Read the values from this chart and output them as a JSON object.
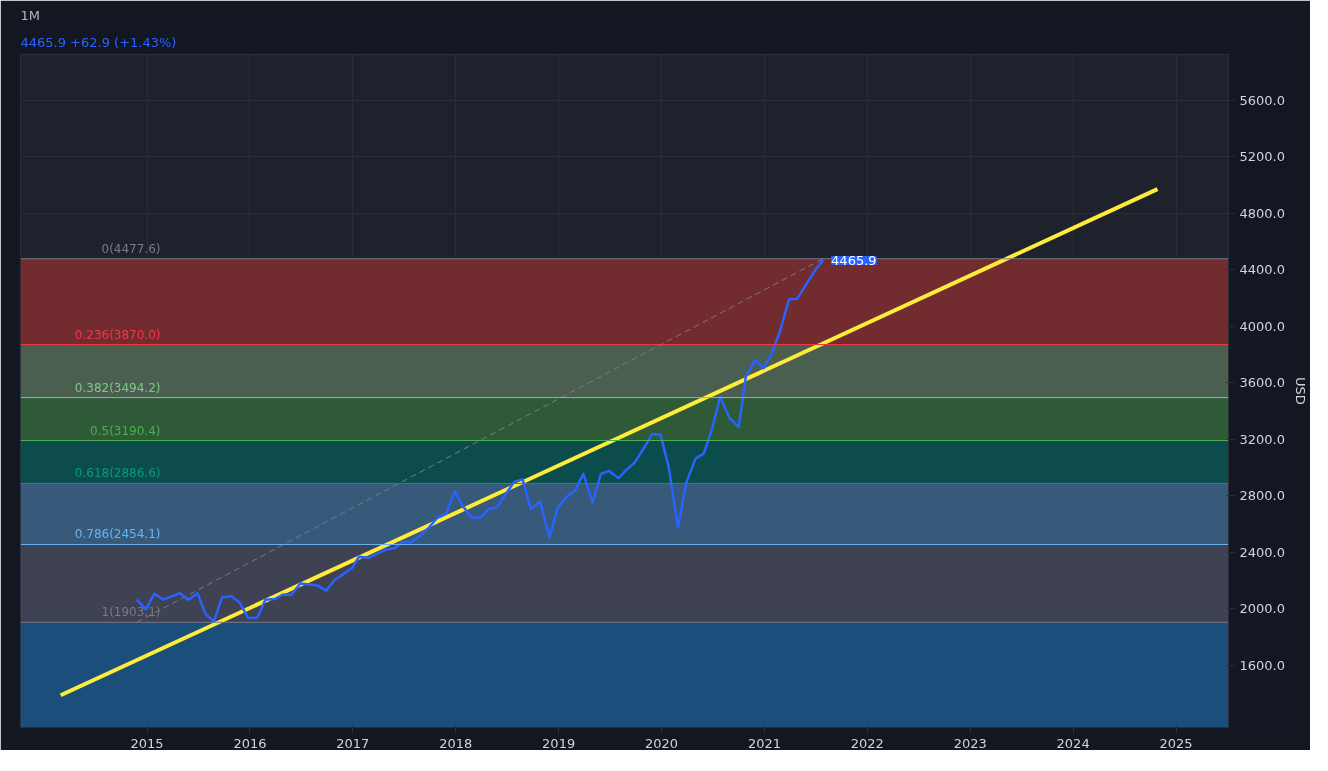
{
  "chart_data": {
    "type": "line",
    "title": "1M",
    "subtitle": "4465.9  +62.9 (+1.43%)",
    "ylabel": "USD",
    "xlim": [
      2013.77,
      2025.51
    ],
    "ylim": [
      1158,
      5924
    ],
    "xticks": [
      2015,
      2016,
      2017,
      2018,
      2019,
      2020,
      2021,
      2022,
      2023,
      2024,
      2025
    ],
    "yticks": [
      {
        "value": 1600,
        "label": "1600.0"
      },
      {
        "value": 2000,
        "label": "2000.0"
      },
      {
        "value": 2400,
        "label": "2400.0"
      },
      {
        "value": 2800,
        "label": "2800.0"
      },
      {
        "value": 3200,
        "label": "3200.0"
      },
      {
        "value": 3600,
        "label": "3600.0"
      },
      {
        "value": 4000,
        "label": "4000.0"
      },
      {
        "value": 4400,
        "label": "4400.0"
      },
      {
        "value": 4800,
        "label": "4800.0"
      },
      {
        "value": 5200,
        "label": "5200.0"
      },
      {
        "value": 5600,
        "label": "5600.0"
      }
    ],
    "grid": true,
    "line_style": "solid",
    "series": [
      {
        "color": "#2962ff",
        "x": [
          2014.9,
          2014.99,
          2015.07,
          2015.16,
          2015.32,
          2015.4,
          2015.49,
          2015.57,
          2015.65,
          2015.73,
          2015.82,
          2015.9,
          2015.98,
          2016.07,
          2016.15,
          2016.24,
          2016.32,
          2016.4,
          2016.49,
          2016.66,
          2016.74,
          2016.82,
          2016.99,
          2017.06,
          2017.15,
          2017.32,
          2017.41,
          2017.48,
          2017.56,
          2017.65,
          2017.74,
          2017.82,
          2017.91,
          2017.99,
          2018.07,
          2018.16,
          2018.24,
          2018.32,
          2018.4,
          2018.49,
          2018.57,
          2018.65,
          2018.73,
          2018.82,
          2018.91,
          2018.99,
          2019.07,
          2019.16,
          2019.24,
          2019.33,
          2019.41,
          2019.49,
          2019.58,
          2019.66,
          2019.74,
          2019.83,
          2019.91,
          2019.99,
          2020.07,
          2020.16,
          2020.24,
          2020.33,
          2020.41,
          2020.49,
          2020.57,
          2020.66,
          2020.75,
          2020.82,
          2020.91,
          2020.99,
          2021.07,
          2021.15,
          2021.24,
          2021.32,
          2021.41,
          2021.5,
          2021.57
        ],
        "values": [
          2063,
          1994,
          2106,
          2063,
          2109,
          2063,
          2109,
          1959,
          1911,
          2081,
          2088,
          2044,
          1936,
          1934,
          2063,
          2068,
          2100,
          2097,
          2178,
          2164,
          2127,
          2201,
          2286,
          2367,
          2360,
          2417,
          2429,
          2470,
          2470,
          2512,
          2574,
          2643,
          2676,
          2830,
          2724,
          2641,
          2645,
          2705,
          2717,
          2816,
          2899,
          2915,
          2705,
          2758,
          2505,
          2712,
          2787,
          2839,
          2954,
          2752,
          2954,
          2975,
          2924,
          2984,
          3035,
          3139,
          3237,
          3232,
          3000,
          2572,
          2890,
          3062,
          3097,
          3270,
          3500,
          3350,
          3286,
          3645,
          3760,
          3702,
          3806,
          3961,
          4191,
          4195,
          4301,
          4405,
          4465.9
        ]
      },
      {
        "color": "#ffeb3b",
        "x": [
          2014.16,
          2024.82
        ],
        "values": [
          1386,
          4971
        ]
      },
      {
        "color": "#787b86",
        "line_style": "dashed",
        "x": [
          2014.9,
          2021.57
        ],
        "values": [
          1903.1,
          4477.6
        ]
      }
    ],
    "bands": [
      {
        "axis": "y",
        "from": 3870.0,
        "to": 4477.6,
        "color": "#722c2f"
      },
      {
        "axis": "y",
        "from": 3494.2,
        "to": 3870.0,
        "color": "#4a5f4f"
      },
      {
        "axis": "y",
        "from": 3190.4,
        "to": 3494.2,
        "color": "#2f5a38"
      },
      {
        "axis": "y",
        "from": 2886.6,
        "to": 3190.4,
        "color": "#0d4c4c"
      },
      {
        "axis": "y",
        "from": 2454.1,
        "to": 2886.6,
        "color": "#385a7a"
      },
      {
        "axis": "y",
        "from": 1903.1,
        "to": 2454.1,
        "color": "#3f4252"
      },
      {
        "axis": "y",
        "from": 1158,
        "to": 1903.1,
        "color": "#1c4e7c"
      }
    ],
    "ref_lines": [
      {
        "axis": "y",
        "value": 4477.6,
        "label": "0(4477.6)",
        "color": "#787b86"
      },
      {
        "axis": "y",
        "value": 3870.0,
        "label": "0.236(3870.0)",
        "color": "#f23645"
      },
      {
        "axis": "y",
        "value": 3494.2,
        "label": "0.382(3494.2)",
        "color": "#81c784"
      },
      {
        "axis": "y",
        "value": 3190.4,
        "label": "0.5(3190.4)",
        "color": "#4caf50"
      },
      {
        "axis": "y",
        "value": 2886.6,
        "label": "0.618(2886.6)",
        "color": "#089981"
      },
      {
        "axis": "y",
        "value": 2454.1,
        "label": "0.786(2454.1)",
        "color": "#64b5f6"
      },
      {
        "axis": "y",
        "value": 1903.1,
        "label": "1(1903.1)",
        "color": "#787b86"
      }
    ],
    "annotations": [
      {
        "text": "4465.9",
        "x": 2021.57,
        "y": 4465.9
      }
    ]
  }
}
